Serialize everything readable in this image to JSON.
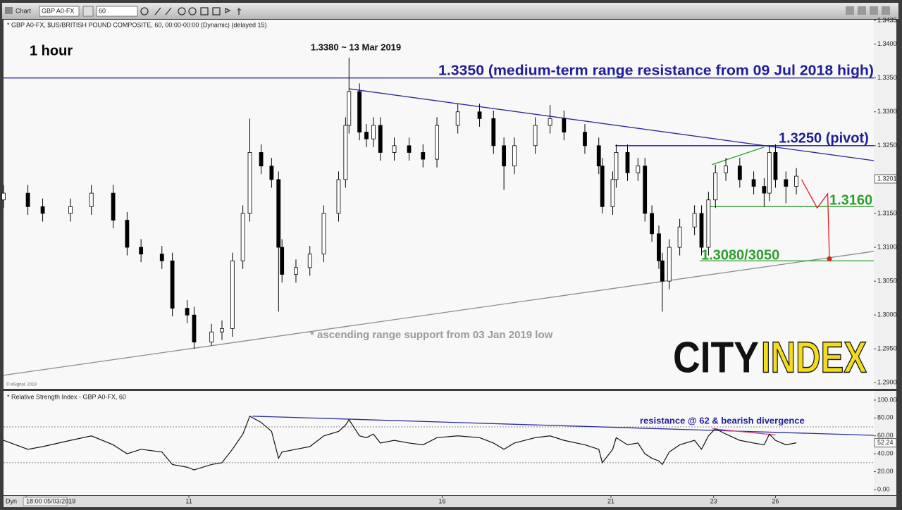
{
  "toolbar": {
    "app": "Chart",
    "symbol": "GBP A0-FX",
    "interval": "60",
    "footer_mode": "Dyn"
  },
  "branding": {
    "left": "CITY",
    "right": "INDEX",
    "credit": "© eSignal, 2019"
  },
  "chart_data": [
    {
      "type": "candlestick",
      "title": "* GBP A0-FX, $US/BRITISH POUND COMPOSITE, 60, 00:00-00:00 (Dynamic) (delayed 15)",
      "annotations": [
        "1 hour",
        "1.3380 ~ 13 Mar 2019",
        "1.3350 (medium-term range resistance from 09 Jul 2018 high)",
        "1.3250 (pivot)",
        "1.3160",
        "1.3080/3050",
        "* ascending range support from 03 Jan 2019 low"
      ],
      "x": [
        0,
        2.8,
        4.5,
        7.7,
        10.1,
        12.6,
        14.2,
        15.8,
        18.2,
        19.4,
        21.1,
        21.9,
        23.9,
        25.1,
        26.3,
        27.5,
        28.3,
        29.6,
        30.8,
        31.6,
        32.0,
        33.6,
        35.2,
        36.8,
        38.5,
        39.3,
        39.7,
        40.9,
        41.7,
        42.5,
        43.3,
        44.9,
        46.6,
        48.2,
        49.8,
        52.2,
        54.7,
        56.3,
        57.5,
        58.7,
        61.1,
        62.8,
        64.4,
        66.8,
        68.4,
        68.8,
        70.0,
        70.4,
        71.7,
        72.9,
        73.7,
        74.5,
        75.3,
        75.7,
        76.5,
        77.7,
        79.4,
        80.2,
        81.0,
        81.8,
        83.0,
        84.6,
        86.2,
        87.4,
        88.0,
        88.7,
        89.9,
        91.1
      ],
      "open": [
        1.317,
        1.318,
        1.316,
        1.315,
        1.316,
        1.318,
        1.314,
        1.31,
        1.309,
        1.308,
        1.301,
        1.3,
        1.296,
        1.2975,
        1.298,
        1.308,
        1.315,
        1.324,
        1.322,
        1.32,
        1.31,
        1.306,
        1.307,
        1.309,
        1.315,
        1.32,
        1.328,
        1.333,
        1.327,
        1.326,
        1.328,
        1.324,
        1.325,
        1.324,
        1.323,
        1.328,
        1.33,
        1.329,
        1.325,
        1.322,
        1.325,
        1.328,
        1.329,
        1.327,
        1.325,
        1.322,
        1.316,
        1.32,
        1.324,
        1.321,
        1.322,
        1.315,
        1.312,
        1.308,
        1.305,
        1.31,
        1.313,
        1.315,
        1.31,
        1.317,
        1.321,
        1.322,
        1.32,
        1.319,
        1.318,
        1.324,
        1.32,
        1.319
      ],
      "high": [
        1.3192,
        1.3192,
        1.3172,
        1.3172,
        1.3192,
        1.3192,
        1.3152,
        1.3112,
        1.3102,
        1.3092,
        1.3022,
        1.3012,
        1.2987,
        1.2992,
        1.3092,
        1.3162,
        1.329,
        1.3252,
        1.3232,
        1.3212,
        1.3112,
        1.3082,
        1.3102,
        1.3162,
        1.3212,
        1.3292,
        1.338,
        1.3342,
        1.3282,
        1.3292,
        1.3292,
        1.3262,
        1.3262,
        1.3252,
        1.3292,
        1.3312,
        1.3312,
        1.3302,
        1.3262,
        1.3262,
        1.3292,
        1.331,
        1.3302,
        1.3282,
        1.3262,
        1.3232,
        1.3212,
        1.3252,
        1.3252,
        1.3232,
        1.3232,
        1.3162,
        1.3132,
        1.3092,
        1.3112,
        1.3142,
        1.3162,
        1.3162,
        1.3182,
        1.3222,
        1.3232,
        1.3232,
        1.3212,
        1.3202,
        1.325,
        1.3252,
        1.3212,
        1.3217
      ],
      "low": [
        1.3158,
        1.3148,
        1.3138,
        1.3138,
        1.3148,
        1.3128,
        1.3088,
        1.3078,
        1.3068,
        1.2998,
        1.2988,
        1.295,
        1.2955,
        1.2963,
        1.2968,
        1.3068,
        1.3138,
        1.3208,
        1.3188,
        1.3005,
        1.3048,
        1.3048,
        1.3058,
        1.3078,
        1.3138,
        1.3188,
        1.3268,
        1.3258,
        1.3248,
        1.3248,
        1.3228,
        1.3228,
        1.3228,
        1.3218,
        1.3218,
        1.3268,
        1.3278,
        1.3238,
        1.3185,
        1.3208,
        1.3238,
        1.3268,
        1.3258,
        1.3238,
        1.3208,
        1.315,
        1.3148,
        1.3188,
        1.3198,
        1.3198,
        1.3138,
        1.3108,
        1.3068,
        1.3005,
        1.3038,
        1.3088,
        1.3118,
        1.3088,
        1.3088,
        1.3158,
        1.3198,
        1.3188,
        1.3178,
        1.316,
        1.3168,
        1.3188,
        1.3165,
        1.3178
      ],
      "close": [
        1.318,
        1.316,
        1.315,
        1.316,
        1.318,
        1.314,
        1.31,
        1.309,
        1.308,
        1.301,
        1.3,
        1.296,
        1.2975,
        1.298,
        1.308,
        1.315,
        1.324,
        1.322,
        1.32,
        1.31,
        1.306,
        1.307,
        1.309,
        1.315,
        1.32,
        1.328,
        1.333,
        1.327,
        1.326,
        1.328,
        1.324,
        1.325,
        1.324,
        1.323,
        1.328,
        1.33,
        1.329,
        1.325,
        1.322,
        1.325,
        1.328,
        1.329,
        1.327,
        1.325,
        1.322,
        1.316,
        1.32,
        1.324,
        1.321,
        1.322,
        1.315,
        1.312,
        1.308,
        1.305,
        1.31,
        1.313,
        1.315,
        1.31,
        1.317,
        1.321,
        1.322,
        1.32,
        1.319,
        1.318,
        1.324,
        1.32,
        1.319,
        1.3205
      ],
      "up_color": "#ffffff",
      "down_color": "#000000",
      "xlim": [
        0,
        100
      ],
      "xticks": [
        {
          "value": 2.6,
          "label": "18:00 05/03/2019"
        },
        {
          "value": 21.3,
          "label": "11"
        },
        {
          "value": 50.4,
          "label": "16"
        },
        {
          "value": 69.8,
          "label": "21"
        },
        {
          "value": 81.6,
          "label": "23"
        },
        {
          "value": 88.7,
          "label": "26"
        }
      ],
      "ylim": [
        1.2891,
        1.3436
      ],
      "yticks": [
        1.3435,
        {
          "value": 1.34,
          "label": "1.3400"
        },
        {
          "value": 1.335,
          "label": "1.3350"
        },
        {
          "value": 1.33,
          "label": "1.3300"
        },
        {
          "value": 1.325,
          "label": "1.3250"
        },
        {
          "value": 1.315,
          "label": "1.3150"
        },
        {
          "value": 1.31,
          "label": "1.3100"
        },
        {
          "value": 1.305,
          "label": "1.3050"
        },
        {
          "value": 1.3,
          "label": "1.3000"
        },
        {
          "value": 1.295,
          "label": "1.2950"
        },
        {
          "value": 1.29,
          "label": "1.2900"
        }
      ],
      "last_price": 1.3201,
      "trendlines": [
        {
          "x": [
            0,
            100
          ],
          "y": [
            1.335,
            1.335
          ],
          "color": "#2b2b9c"
        },
        {
          "x": [
            39.7,
            100
          ],
          "y": [
            1.3334,
            1.3228
          ],
          "color": "#2b2b9c"
        },
        {
          "x": [
            0,
            100
          ],
          "y": [
            1.2911,
            1.3094
          ],
          "color": "#8c8c8c"
        },
        {
          "x": [
            70.3,
            100
          ],
          "y": [
            1.325,
            1.325
          ],
          "color": "#1c1c8c"
        },
        {
          "x": [
            81.0,
            100
          ],
          "y": [
            1.316,
            1.316
          ],
          "color": "#2e9e2e"
        },
        {
          "x": [
            80.0,
            100
          ],
          "y": [
            1.308,
            1.308
          ],
          "color": "#2e9e2e"
        },
        {
          "x": [
            81.4,
            87.4
          ],
          "y": [
            1.3222,
            1.3248
          ],
          "color": "#2e9e2e"
        },
        {
          "x": [
            91.7,
            93.5,
            94.7,
            94.9
          ],
          "y": [
            1.32,
            1.3158,
            1.3179,
            1.3083
          ],
          "color": "#e02020",
          "end_dot": true
        }
      ]
    },
    {
      "type": "line",
      "title": "* Relative Strength Index - GBP A0-FX, 60",
      "annotations": [
        "resistance @ 62 & bearish divergence"
      ],
      "color": "#111111",
      "values": [
        55,
        45,
        48,
        55,
        60,
        50,
        40,
        45,
        42,
        28,
        25,
        22,
        28,
        30,
        45,
        62,
        82,
        75,
        65,
        35,
        42,
        45,
        48,
        60,
        65,
        72,
        78,
        60,
        58,
        62,
        52,
        55,
        52,
        50,
        58,
        60,
        58,
        52,
        45,
        52,
        58,
        60,
        55,
        50,
        45,
        30,
        45,
        58,
        50,
        52,
        40,
        35,
        32,
        28,
        42,
        50,
        55,
        45,
        60,
        68,
        62,
        55,
        52,
        50,
        62,
        55,
        50,
        52.24
      ],
      "xlim": [
        0,
        100
      ],
      "ylim": [
        -6.3,
        109.4
      ],
      "yticks": [
        {
          "value": 0,
          "label": "0.00"
        },
        {
          "value": 20,
          "label": "20.00"
        },
        {
          "value": 40,
          "label": "40.00"
        },
        {
          "value": 60,
          "label": "60.00"
        },
        {
          "value": 80,
          "label": "80.00"
        },
        {
          "value": 100,
          "label": "100.00"
        }
      ],
      "levels": [
        30,
        70
      ],
      "trendlines": [
        {
          "x": [
            28.6,
            100
          ],
          "y": [
            82,
            60.6
          ],
          "color": "#2b2b9c"
        },
        {
          "x": [
            81.4,
            88.7
          ],
          "y": [
            68,
            61
          ],
          "color": "#d04080"
        }
      ]
    }
  ]
}
